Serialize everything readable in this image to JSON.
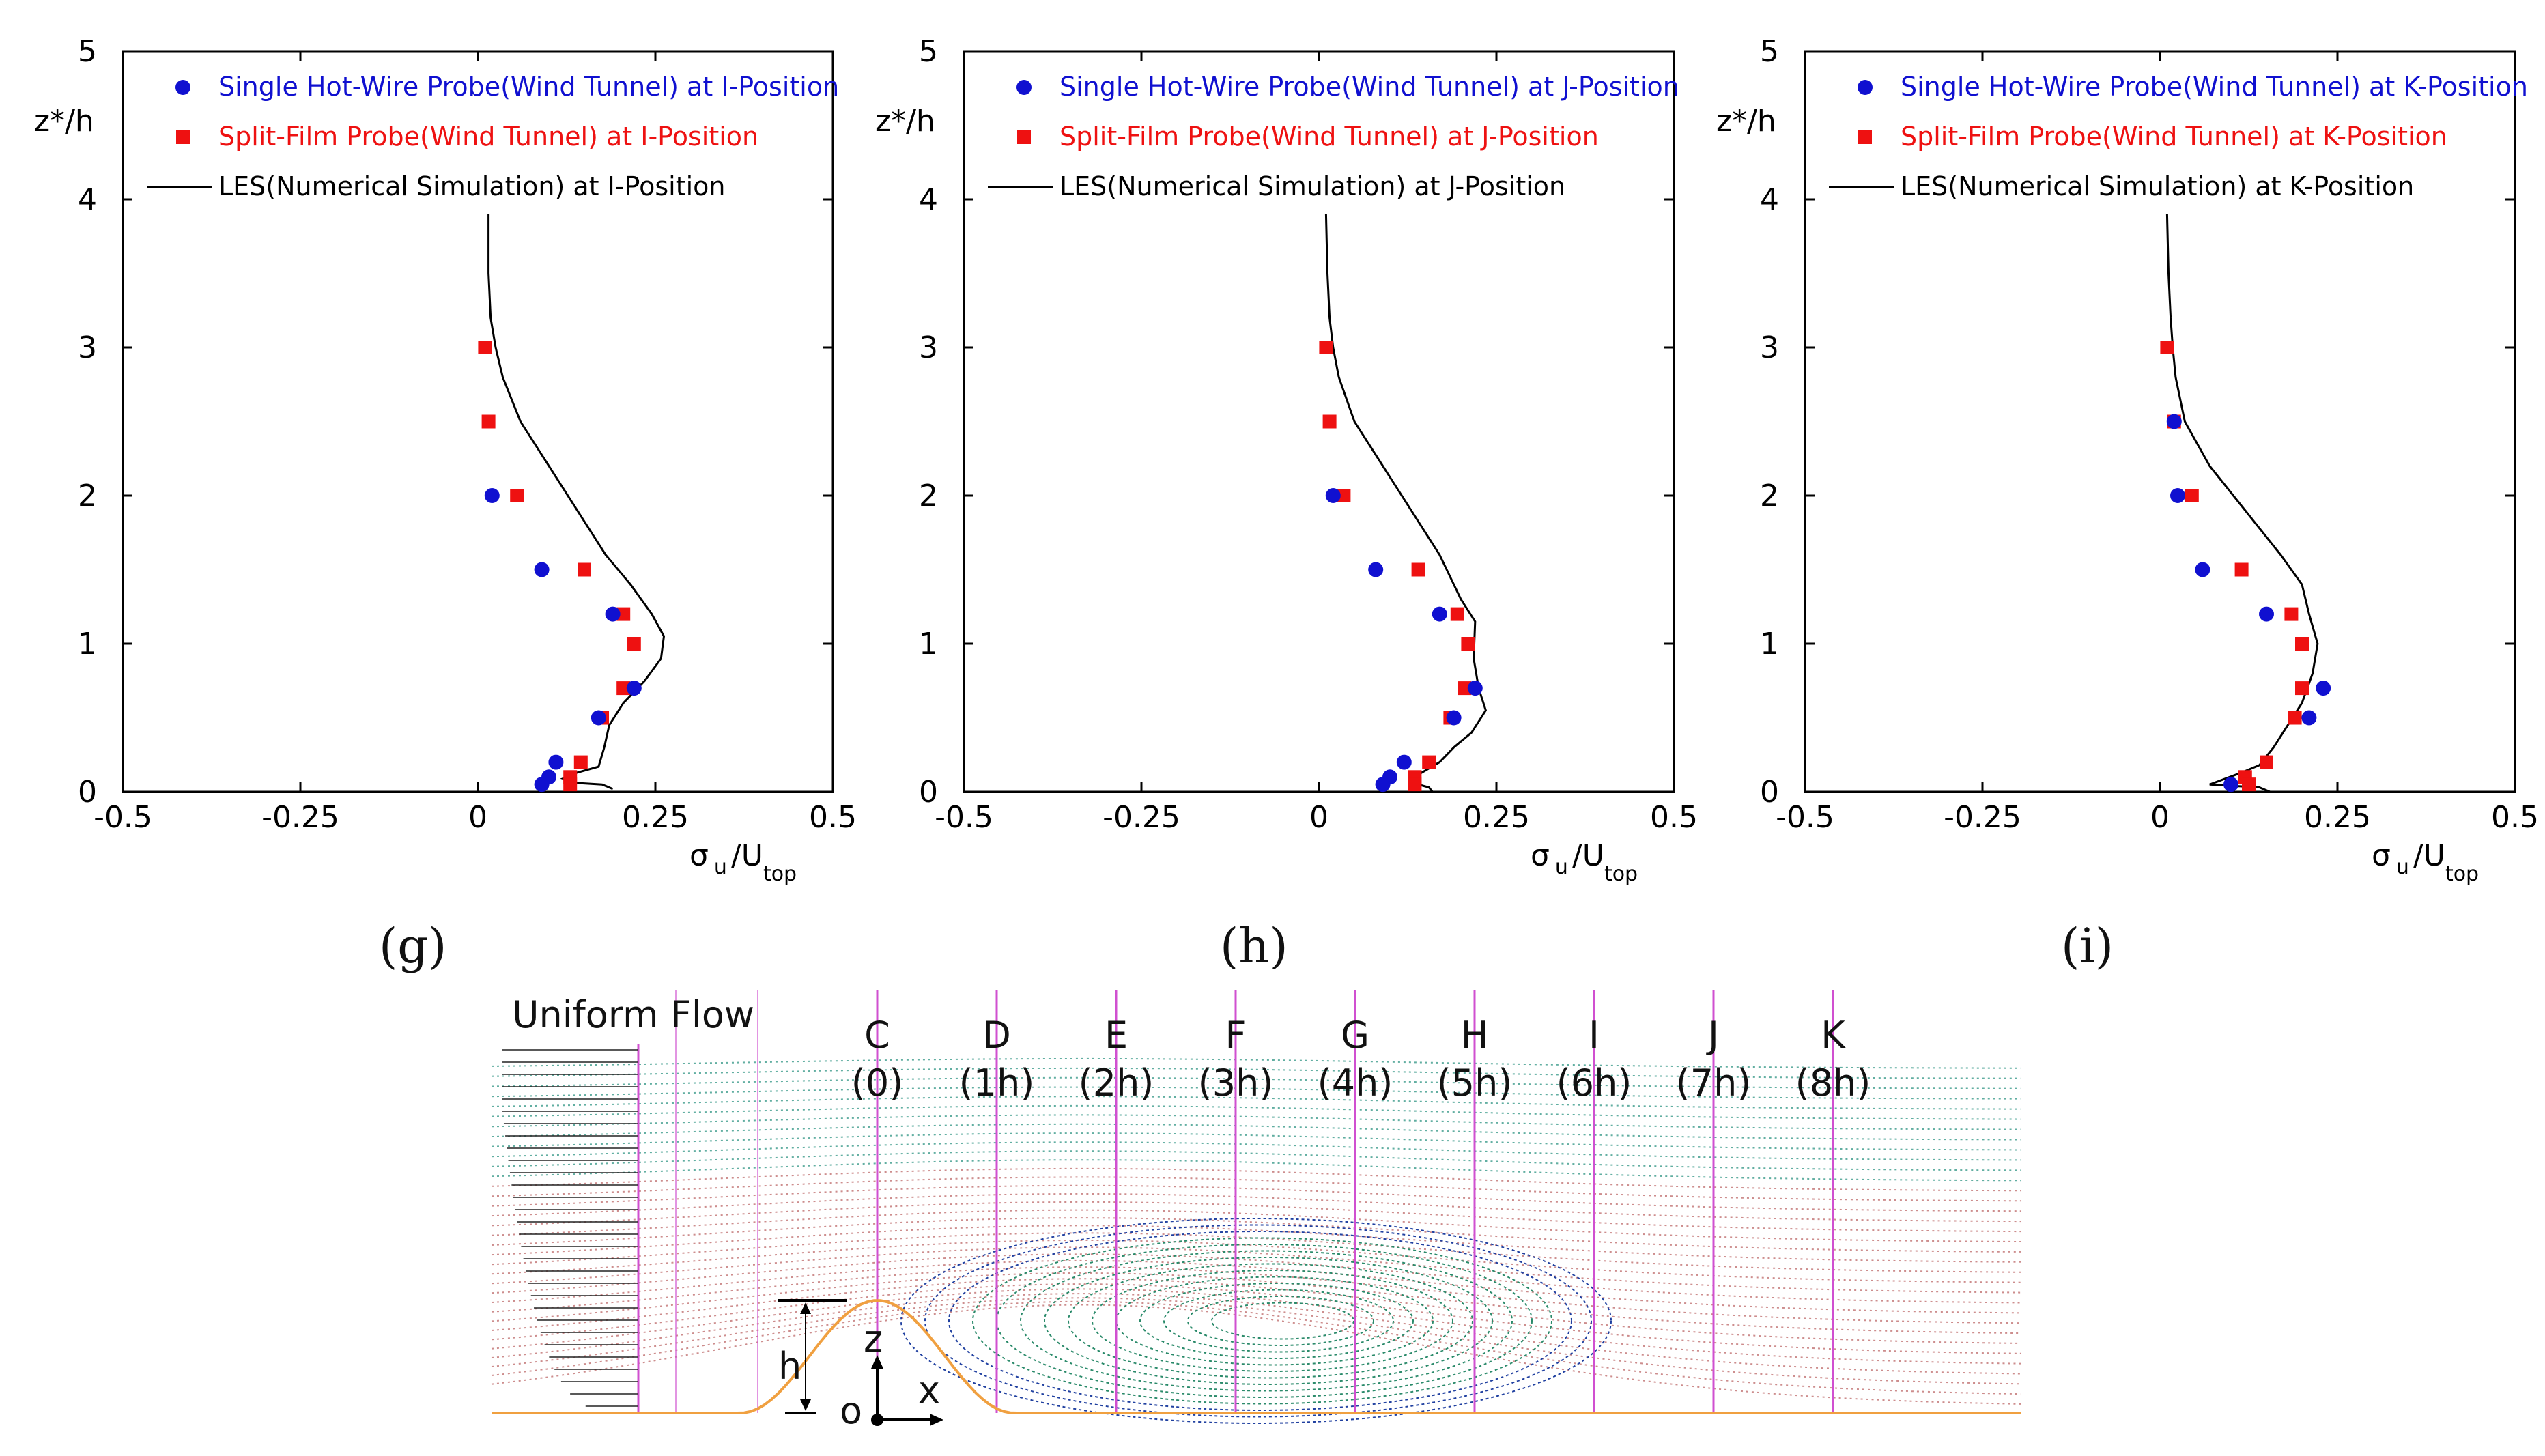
{
  "chart_data": [
    {
      "type": "scatter",
      "panel_label": "(g)",
      "ylabel": "z*/h",
      "xlabel_symbol": "σ",
      "xlabel_sub": "u",
      "xlabel_mid": "/U",
      "xlabel_sub2": "top",
      "xlim": [
        -0.5,
        0.5
      ],
      "ylim": [
        0,
        5
      ],
      "xticks": [
        "-0.5",
        "-0.25",
        "0",
        "0.25",
        "0.5"
      ],
      "yticks": [
        "0",
        "1",
        "2",
        "3",
        "4",
        "5"
      ],
      "legend": [
        {
          "label": "Single Hot-Wire Probe(Wind Tunnel) at I-Position",
          "color": "#1010d0",
          "marker": "circle"
        },
        {
          "label": "Split-Film Probe(Wind Tunnel) at I-Position",
          "color": "#ee1111",
          "marker": "square"
        },
        {
          "label": "LES(Numerical Simulation) at I-Position",
          "color": "#000000",
          "marker": "line"
        }
      ],
      "series": [
        {
          "name": "Single Hot-Wire Probe",
          "x": [
            0.02,
            0.09,
            0.19,
            0.22,
            0.17,
            0.11,
            0.1,
            0.09
          ],
          "y": [
            2.0,
            1.5,
            1.2,
            0.7,
            0.5,
            0.2,
            0.1,
            0.05
          ]
        },
        {
          "name": "Split-Film Probe",
          "x": [
            0.01,
            0.015,
            0.055,
            0.15,
            0.205,
            0.22,
            0.205,
            0.175,
            0.145,
            0.13,
            0.13
          ],
          "y": [
            3.0,
            2.5,
            2.0,
            1.5,
            1.2,
            1.0,
            0.7,
            0.5,
            0.2,
            0.1,
            0.05
          ]
        },
        {
          "name": "LES",
          "x": [
            0.015,
            0.015,
            0.018,
            0.025,
            0.035,
            0.06,
            0.1,
            0.14,
            0.18,
            0.215,
            0.245,
            0.262,
            0.258,
            0.235,
            0.205,
            0.185,
            0.178,
            0.17,
            0.14,
            0.12,
            0.14,
            0.175,
            0.19
          ],
          "y": [
            3.9,
            3.5,
            3.2,
            3.0,
            2.8,
            2.5,
            2.2,
            1.9,
            1.6,
            1.4,
            1.2,
            1.05,
            0.9,
            0.75,
            0.6,
            0.45,
            0.3,
            0.17,
            0.13,
            0.09,
            0.06,
            0.05,
            0.02
          ]
        }
      ]
    },
    {
      "type": "scatter",
      "panel_label": "(h)",
      "ylabel": "z*/h",
      "xlabel_symbol": "σ",
      "xlabel_sub": "u",
      "xlabel_mid": "/U",
      "xlabel_sub2": "top",
      "xlim": [
        -0.5,
        0.5
      ],
      "ylim": [
        0,
        5
      ],
      "xticks": [
        "-0.5",
        "-0.25",
        "0",
        "0.25",
        "0.5"
      ],
      "yticks": [
        "0",
        "1",
        "2",
        "3",
        "4",
        "5"
      ],
      "legend": [
        {
          "label": "Single Hot-Wire Probe(Wind Tunnel) at J-Position",
          "color": "#1010d0",
          "marker": "circle"
        },
        {
          "label": "Split-Film Probe(Wind Tunnel) at J-Position",
          "color": "#ee1111",
          "marker": "square"
        },
        {
          "label": "LES(Numerical Simulation) at J-Position",
          "color": "#000000",
          "marker": "line"
        }
      ],
      "series": [
        {
          "name": "Single Hot-Wire Probe",
          "x": [
            0.02,
            0.08,
            0.17,
            0.22,
            0.19,
            0.12,
            0.1,
            0.09
          ],
          "y": [
            2.0,
            1.5,
            1.2,
            0.7,
            0.5,
            0.2,
            0.1,
            0.05
          ]
        },
        {
          "name": "Split-Film Probe",
          "x": [
            0.01,
            0.015,
            0.035,
            0.14,
            0.195,
            0.21,
            0.205,
            0.185,
            0.155,
            0.135,
            0.135
          ],
          "y": [
            3.0,
            2.5,
            2.0,
            1.5,
            1.2,
            1.0,
            0.7,
            0.5,
            0.2,
            0.1,
            0.05
          ]
        },
        {
          "name": "LES",
          "x": [
            0.01,
            0.012,
            0.015,
            0.02,
            0.028,
            0.05,
            0.09,
            0.13,
            0.17,
            0.2,
            0.22,
            0.218,
            0.225,
            0.235,
            0.215,
            0.19,
            0.17,
            0.145,
            0.13,
            0.14,
            0.155,
            0.16
          ],
          "y": [
            3.9,
            3.5,
            3.2,
            3.0,
            2.8,
            2.5,
            2.2,
            1.9,
            1.6,
            1.3,
            1.15,
            0.9,
            0.7,
            0.55,
            0.4,
            0.3,
            0.2,
            0.13,
            0.08,
            0.05,
            0.03,
            0.0
          ]
        }
      ]
    },
    {
      "type": "scatter",
      "panel_label": "(i)",
      "ylabel": "z*/h",
      "xlabel_symbol": "σ",
      "xlabel_sub": "u",
      "xlabel_mid": "/U",
      "xlabel_sub2": "top",
      "xlim": [
        -0.5,
        0.5
      ],
      "ylim": [
        0,
        5
      ],
      "xticks": [
        "-0.5",
        "-0.25",
        "0",
        "0.25",
        "0.5"
      ],
      "yticks": [
        "0",
        "1",
        "2",
        "3",
        "4",
        "5"
      ],
      "legend": [
        {
          "label": "Single Hot-Wire Probe(Wind Tunnel) at K-Position",
          "color": "#1010d0",
          "marker": "circle"
        },
        {
          "label": "Split-Film Probe(Wind Tunnel) at K-Position",
          "color": "#ee1111",
          "marker": "square"
        },
        {
          "label": "LES(Numerical Simulation) at K-Position",
          "color": "#000000",
          "marker": "line"
        }
      ],
      "series": [
        {
          "name": "Single Hot-Wire Probe",
          "x": [
            0.02,
            0.025,
            0.06,
            0.15,
            0.23,
            0.21,
            0.1
          ],
          "y": [
            2.5,
            2.0,
            1.5,
            1.2,
            0.7,
            0.5,
            0.05
          ]
        },
        {
          "name": "Split-Film Probe",
          "x": [
            0.01,
            0.02,
            0.045,
            0.115,
            0.185,
            0.2,
            0.2,
            0.19,
            0.15,
            0.12,
            0.125
          ],
          "y": [
            3.0,
            2.5,
            2.0,
            1.5,
            1.2,
            1.0,
            0.7,
            0.5,
            0.2,
            0.1,
            0.05
          ]
        },
        {
          "name": "LES",
          "x": [
            0.01,
            0.012,
            0.015,
            0.018,
            0.022,
            0.035,
            0.07,
            0.12,
            0.17,
            0.2,
            0.21,
            0.222,
            0.215,
            0.2,
            0.18,
            0.16,
            0.14,
            0.115,
            0.07,
            0.14,
            0.155
          ],
          "y": [
            3.9,
            3.5,
            3.2,
            3.0,
            2.8,
            2.5,
            2.2,
            1.9,
            1.6,
            1.4,
            1.2,
            1.0,
            0.8,
            0.6,
            0.45,
            0.3,
            0.18,
            0.13,
            0.05,
            0.03,
            0.0
          ]
        }
      ]
    }
  ],
  "diagram": {
    "title": "Uniform Flow",
    "stations": [
      {
        "letter": "C",
        "pos": "(0)"
      },
      {
        "letter": "D",
        "pos": "(1h)"
      },
      {
        "letter": "E",
        "pos": "(2h)"
      },
      {
        "letter": "F",
        "pos": "(3h)"
      },
      {
        "letter": "G",
        "pos": "(4h)"
      },
      {
        "letter": "H",
        "pos": "(5h)"
      },
      {
        "letter": "I",
        "pos": "(6h)"
      },
      {
        "letter": "J",
        "pos": "(7h)"
      },
      {
        "letter": "K",
        "pos": "(8h)"
      }
    ],
    "h_label": "h",
    "z_label": "z",
    "x_label": "x",
    "o_label": "o"
  },
  "colors": {
    "hotwire": "#1010d0",
    "splitfilm": "#ee1111",
    "les": "#000000",
    "station_line": "#d050d0",
    "streamline_outer": "#3a9a8a",
    "streamline_red": "#c07070",
    "vortex_blue": "#2040a0",
    "vortex_green": "#2a8a6a",
    "ground": "#f0a040"
  }
}
